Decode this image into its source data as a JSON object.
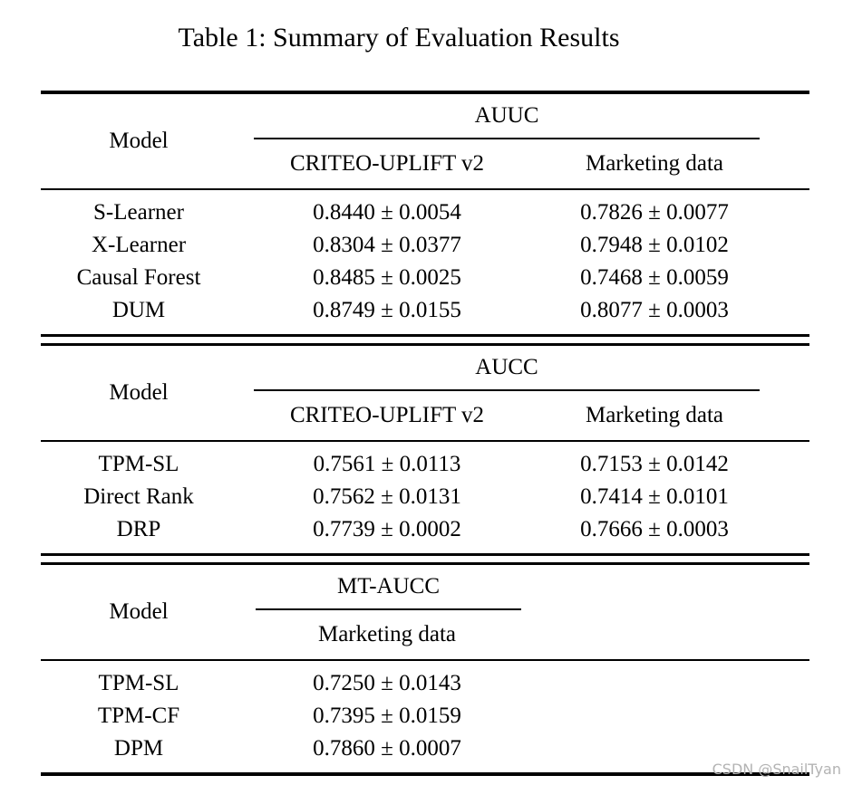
{
  "page": {
    "title": "Table 1: Summary of Evaluation Results",
    "watermark": "CSDN @SnailTyan"
  },
  "colors": {
    "text": "#000000",
    "rules": "#000000",
    "watermark": "#b3b3b3",
    "background": "#ffffff"
  },
  "tables": [
    {
      "model_header": "Model",
      "metric": "AUUC",
      "col1": "CRITEO-UPLIFT v2",
      "col2": "Marketing data",
      "rows": [
        {
          "model": "S-Learner",
          "v1": "0.8440 ± 0.0054",
          "v2": "0.7826 ± 0.0077"
        },
        {
          "model": "X-Learner",
          "v1": "0.8304 ± 0.0377",
          "v2": "0.7948 ± 0.0102"
        },
        {
          "model": "Causal Forest",
          "v1": "0.8485 ± 0.0025",
          "v2": "0.7468 ± 0.0059"
        },
        {
          "model": "DUM",
          "v1": "0.8749 ± 0.0155",
          "v2": "0.8077 ± 0.0003"
        }
      ]
    },
    {
      "model_header": "Model",
      "metric": "AUCC",
      "col1": "CRITEO-UPLIFT v2",
      "col2": "Marketing data",
      "rows": [
        {
          "model": "TPM-SL",
          "v1": "0.7561 ± 0.0113",
          "v2": "0.7153 ± 0.0142"
        },
        {
          "model": "Direct Rank",
          "v1": "0.7562 ± 0.0131",
          "v2": "0.7414 ± 0.0101"
        },
        {
          "model": "DRP",
          "v1": "0.7739 ± 0.0002",
          "v2": "0.7666 ± 0.0003"
        }
      ]
    },
    {
      "model_header": "Model",
      "metric": "MT-AUCC",
      "col1": "Marketing data",
      "rows": [
        {
          "model": "TPM-SL",
          "v1": "0.7250 ± 0.0143"
        },
        {
          "model": "TPM-CF",
          "v1": "0.7395 ± 0.0159"
        },
        {
          "model": "DPM",
          "v1": "0.7860 ± 0.0007"
        }
      ]
    }
  ]
}
